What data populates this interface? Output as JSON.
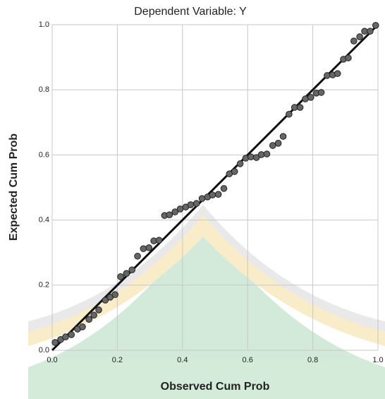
{
  "chart_data": {
    "type": "scatter",
    "title": "Dependent Variable: Y",
    "x_label": "Observed Cum Prob",
    "y_label": "Expected Cum Prob",
    "x": [
      0.009,
      0.026,
      0.041,
      0.059,
      0.078,
      0.093,
      0.113,
      0.128,
      0.143,
      0.163,
      0.178,
      0.193,
      0.21,
      0.228,
      0.245,
      0.262,
      0.28,
      0.297,
      0.312,
      0.328,
      0.345,
      0.36,
      0.377,
      0.393,
      0.41,
      0.425,
      0.443,
      0.46,
      0.477,
      0.492,
      0.51,
      0.527,
      0.544,
      0.56,
      0.577,
      0.594,
      0.61,
      0.627,
      0.642,
      0.659,
      0.677,
      0.694,
      0.709,
      0.727,
      0.744,
      0.761,
      0.777,
      0.794,
      0.811,
      0.826,
      0.844,
      0.861,
      0.876,
      0.894,
      0.909,
      0.926,
      0.944,
      0.959,
      0.976,
      0.993
    ],
    "values": [
      0.024,
      0.033,
      0.041,
      0.048,
      0.065,
      0.072,
      0.095,
      0.108,
      0.124,
      0.154,
      0.163,
      0.171,
      0.226,
      0.236,
      0.247,
      0.289,
      0.312,
      0.315,
      0.336,
      0.338,
      0.414,
      0.416,
      0.425,
      0.434,
      0.44,
      0.447,
      0.451,
      0.466,
      0.471,
      0.477,
      0.479,
      0.497,
      0.542,
      0.549,
      0.573,
      0.59,
      0.594,
      0.592,
      0.601,
      0.603,
      0.629,
      0.636,
      0.657,
      0.725,
      0.746,
      0.746,
      0.772,
      0.777,
      0.79,
      0.792,
      0.844,
      0.846,
      0.85,
      0.894,
      0.898,
      0.95,
      0.963,
      0.98,
      0.98,
      0.998
    ],
    "color": "#666666",
    "line_color": "#111111",
    "xlim": [
      0,
      1
    ],
    "ylim": [
      0,
      1
    ],
    "xticks": [
      {
        "value": 0,
        "label": "0.0"
      },
      {
        "value": 0.2,
        "label": "0.2"
      },
      {
        "value": 0.4,
        "label": "0.4"
      },
      {
        "value": 0.6,
        "label": "0.6"
      },
      {
        "value": 0.8,
        "label": "0.8"
      },
      {
        "value": 1,
        "label": "1.0"
      }
    ],
    "yticks": [
      {
        "value": 0,
        "label": "0.0"
      },
      {
        "value": 0.2,
        "label": "0.2"
      },
      {
        "value": 0.4,
        "label": "0.4"
      },
      {
        "value": 0.6,
        "label": "0.6"
      },
      {
        "value": 0.8,
        "label": "0.8"
      },
      {
        "value": 1,
        "label": "1.0"
      }
    ],
    "grid": true
  }
}
